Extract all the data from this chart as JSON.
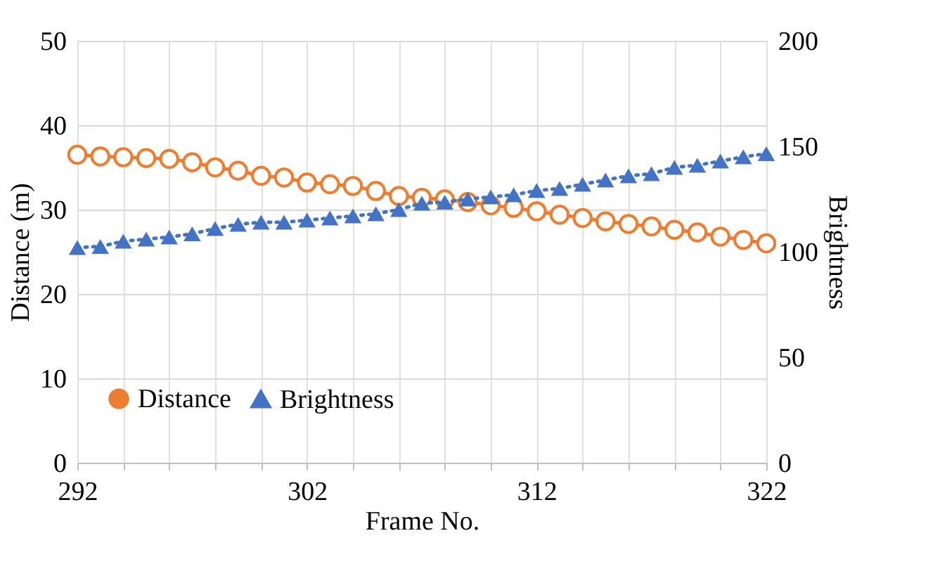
{
  "chart_data": {
    "type": "line",
    "xlabel": "Frame No.",
    "ylabel": "Distance (m)",
    "y2label": "Brightness",
    "x": [
      292,
      293,
      294,
      295,
      296,
      297,
      298,
      299,
      300,
      301,
      302,
      303,
      304,
      305,
      306,
      307,
      308,
      309,
      310,
      311,
      312,
      313,
      314,
      315,
      316,
      317,
      318,
      319,
      320,
      321,
      322
    ],
    "series": [
      {
        "name": "Distance",
        "color": "#ed7d31",
        "marker": "circle",
        "line_style": "solid",
        "values": [
          36.5,
          36.3,
          36.2,
          36.1,
          36.0,
          35.6,
          35.0,
          34.6,
          34.0,
          33.8,
          33.2,
          33.0,
          32.8,
          32.2,
          31.6,
          31.4,
          31.2,
          30.9,
          30.5,
          30.2,
          29.8,
          29.4,
          29.0,
          28.6,
          28.3,
          28.0,
          27.6,
          27.3,
          26.8,
          26.4,
          26.0
        ]
      },
      {
        "name": "Brightness",
        "color": "#4472c4",
        "marker": "triangle",
        "line_style": "dotted",
        "axis": "y2",
        "values": [
          102,
          102.5,
          105,
          106,
          107,
          108.5,
          111,
          113,
          114,
          114,
          115,
          116,
          117,
          118,
          120,
          123,
          123.5,
          125,
          126,
          127,
          129,
          130,
          132,
          134,
          136,
          137,
          140,
          141,
          143,
          145,
          146.5
        ]
      }
    ],
    "xlim": [
      292,
      322
    ],
    "xticks": [
      292,
      {
        "value": 294,
        "label": null
      },
      {
        "value": 296,
        "label": null
      },
      {
        "value": 298,
        "label": null
      },
      {
        "value": 300,
        "label": null
      },
      302,
      {
        "value": 304,
        "label": null
      },
      {
        "value": 306,
        "label": null
      },
      {
        "value": 308,
        "label": null
      },
      {
        "value": 310,
        "label": null
      },
      312,
      {
        "value": 314,
        "label": null
      },
      {
        "value": 316,
        "label": null
      },
      {
        "value": 318,
        "label": null
      },
      {
        "value": 320,
        "label": null
      },
      322
    ],
    "ylim": [
      0,
      50
    ],
    "yticks": [
      0,
      10,
      20,
      30,
      40,
      50
    ],
    "y2lim": [
      0,
      200
    ],
    "y2ticks": [
      0,
      50,
      100,
      150,
      200
    ],
    "grid": true,
    "legend": "bottom"
  }
}
